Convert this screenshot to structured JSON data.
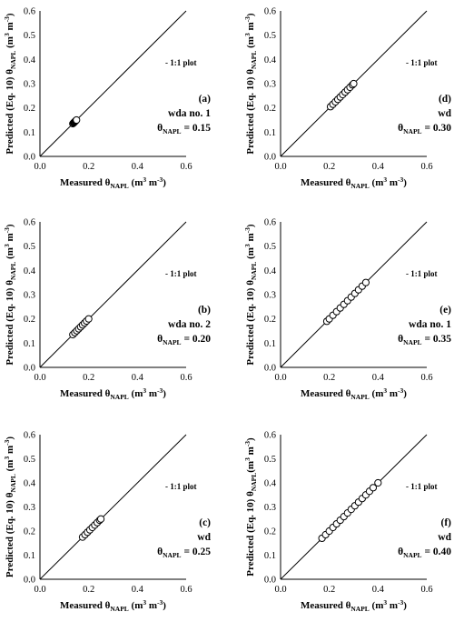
{
  "chart_data": [
    {
      "type": "scatter",
      "panel": "(a)",
      "dataset": "wda no. 1",
      "theta_label": "θ",
      "theta_sub": "NAPL",
      "theta_value": "= 0.15",
      "legend": "- 1:1 plot",
      "xlabel": {
        "main": "Measured θ",
        "sub": "NAPL",
        "unit_a": " (m",
        "sup1": "3",
        "unit_b": " m",
        "sup2": "-3",
        "unit_c": ")"
      },
      "ylabel": {
        "main": "Predicted (Eq. 10) θ",
        "sub": "NAPL",
        "unit_a": " (m",
        "sup1": "3",
        "unit_b": " m",
        "sup2": "-3",
        "unit_c": ")"
      },
      "xlim": [
        0,
        0.6
      ],
      "ylim": [
        0,
        0.6
      ],
      "xticks": [
        "0.0",
        "0.2",
        "0.4",
        "0.6"
      ],
      "yticks": [
        "0.0",
        "0.1",
        "0.2",
        "0.3",
        "0.4",
        "0.5",
        "0.6"
      ],
      "x": [
        0.135,
        0.138,
        0.14,
        0.142,
        0.144,
        0.146,
        0.148,
        0.15
      ],
      "y": [
        0.135,
        0.138,
        0.14,
        0.142,
        0.144,
        0.146,
        0.148,
        0.15
      ]
    },
    {
      "type": "scatter",
      "panel": "(d)",
      "dataset": "wd",
      "theta_label": "θ",
      "theta_sub": "NAPL",
      "theta_value": "= 0.30",
      "legend": "- 1:1 plot",
      "xlabel": {
        "main": "Measured θ",
        "sub": "NAPL",
        "unit_a": " (m",
        "sup1": "3",
        "unit_b": " m",
        "sup2": "-3",
        "unit_c": ")"
      },
      "ylabel": {
        "main": "Predicted (Eq. 10) θ",
        "sub": "NAPL",
        "unit_a": " (m",
        "sup1": "3",
        "unit_b": " m",
        "sup2": "-3",
        "unit_c": ")"
      },
      "xlim": [
        0,
        0.6
      ],
      "ylim": [
        0,
        0.6
      ],
      "xticks": [
        "0.0",
        "0.2",
        "0.4",
        "0.6"
      ],
      "yticks": [
        "0.0",
        "0.1",
        "0.2",
        "0.3",
        "0.4",
        "0.5",
        "0.6"
      ],
      "x": [
        0.205,
        0.215,
        0.225,
        0.235,
        0.245,
        0.255,
        0.265,
        0.275,
        0.285,
        0.295,
        0.3
      ],
      "y": [
        0.205,
        0.215,
        0.225,
        0.235,
        0.245,
        0.255,
        0.265,
        0.275,
        0.285,
        0.295,
        0.3
      ]
    },
    {
      "type": "scatter",
      "panel": "(b)",
      "dataset": "wda no. 2",
      "theta_label": "θ",
      "theta_sub": "NAPL",
      "theta_value": "= 0.20",
      "legend": "- 1:1 plot",
      "xlabel": {
        "main": "Measured θ",
        "sub": "NAPL",
        "unit_a": " (m",
        "sup1": "3",
        "unit_b": " m",
        "sup2": "-3",
        "unit_c": ")"
      },
      "ylabel": {
        "main": "Predicted (Eq. 10) θ",
        "sub": "NAPL",
        "unit_a": " (m",
        "sup1": "3",
        "unit_b": " m",
        "sup2": "-3",
        "unit_c": ")"
      },
      "xlim": [
        0,
        0.6
      ],
      "ylim": [
        0,
        0.6
      ],
      "xticks": [
        "0.0",
        "0.2",
        "0.4",
        "0.6"
      ],
      "yticks": [
        "0.0",
        "0.1",
        "0.2",
        "0.3",
        "0.4",
        "0.5",
        "0.6"
      ],
      "x": [
        0.135,
        0.143,
        0.151,
        0.159,
        0.167,
        0.175,
        0.183,
        0.191,
        0.2
      ],
      "y": [
        0.135,
        0.143,
        0.151,
        0.159,
        0.167,
        0.175,
        0.183,
        0.191,
        0.2
      ]
    },
    {
      "type": "scatter",
      "panel": "(e)",
      "dataset": "wda no. 1",
      "theta_label": "θ",
      "theta_sub": "NAPL",
      "theta_value": "= 0.35",
      "legend": "- 1:1 plot",
      "xlabel": {
        "main": "Measured θ",
        "sub": "NAPL",
        "unit_a": " (m",
        "sup1": "3",
        "unit_b": " m",
        "sup2": "-3",
        "unit_c": ")"
      },
      "ylabel": {
        "main": "Predicted (Eq. 10) θ",
        "sub": "NAPL",
        "unit_a": " (m",
        "sup1": "3",
        "unit_b": "  m",
        "sup2": "-3",
        "unit_c": ")"
      },
      "xlim": [
        0,
        0.6
      ],
      "ylim": [
        0,
        0.6
      ],
      "xticks": [
        "0.0",
        "0.2",
        "0.4",
        "0.6"
      ],
      "yticks": [
        "0.0",
        "0.1",
        "0.2",
        "0.3",
        "0.4",
        "0.5",
        "0.6"
      ],
      "x": [
        0.19,
        0.2,
        0.215,
        0.23,
        0.245,
        0.26,
        0.275,
        0.29,
        0.305,
        0.32,
        0.335,
        0.35
      ],
      "y": [
        0.19,
        0.2,
        0.215,
        0.23,
        0.245,
        0.26,
        0.275,
        0.29,
        0.305,
        0.32,
        0.335,
        0.35
      ]
    },
    {
      "type": "scatter",
      "panel": "(c)",
      "dataset": "wd",
      "theta_label": "θ",
      "theta_sub": "NAPL",
      "theta_value": "= 0.25",
      "legend": "- 1:1 plot",
      "xlabel": {
        "main": "Measured θ",
        "sub": "NAPL",
        "unit_a": " (m",
        "sup1": "3",
        "unit_b": " m",
        "sup2": "-3",
        "unit_c": ")"
      },
      "ylabel": {
        "main": "Predicted (Eq. 10) θ",
        "sub": "NAPL",
        "unit_a": " (m",
        "sup1": "3",
        "unit_b": " m",
        "sup2": "-3",
        "unit_c": ")"
      },
      "xlim": [
        0,
        0.6
      ],
      "ylim": [
        0,
        0.6
      ],
      "xticks": [
        "0.0",
        "0.2",
        "0.4",
        "0.6"
      ],
      "yticks": [
        "0.0",
        "0.1",
        "0.2",
        "0.3",
        "0.4",
        "0.5",
        "0.6"
      ],
      "x": [
        0.175,
        0.185,
        0.195,
        0.205,
        0.215,
        0.225,
        0.235,
        0.245,
        0.25
      ],
      "y": [
        0.175,
        0.185,
        0.195,
        0.205,
        0.215,
        0.225,
        0.235,
        0.245,
        0.25
      ]
    },
    {
      "type": "scatter",
      "panel": "(f)",
      "dataset": "wd",
      "theta_label": "θ",
      "theta_sub": "NAPL",
      "theta_value": "= 0.40",
      "legend": "- 1:1 plot",
      "xlabel": {
        "main": "Measured θ",
        "sub": "NAPL",
        "unit_a": " (m",
        "sup1": "3",
        "unit_b": " m",
        "sup2": "-3",
        "unit_c": ")"
      },
      "ylabel": {
        "main": "Predicted (Eq. 10) θ",
        "sub": "NAPL",
        "unit_a": "(m",
        "sup1": "3",
        "unit_b": " m",
        "sup2": "-3",
        "unit_c": ")"
      },
      "xlim": [
        0,
        0.6
      ],
      "ylim": [
        0,
        0.6
      ],
      "xticks": [
        "0.0",
        "0.2",
        "0.4",
        "0.6"
      ],
      "yticks": [
        "0.0",
        "0.1",
        "0.2",
        "0.3",
        "0.4",
        "0.5",
        "0.6"
      ],
      "x": [
        0.17,
        0.185,
        0.2,
        0.215,
        0.23,
        0.245,
        0.26,
        0.275,
        0.29,
        0.305,
        0.32,
        0.335,
        0.35,
        0.365,
        0.38,
        0.4
      ],
      "y": [
        0.17,
        0.185,
        0.2,
        0.215,
        0.23,
        0.245,
        0.26,
        0.275,
        0.29,
        0.305,
        0.32,
        0.335,
        0.35,
        0.365,
        0.38,
        0.4
      ]
    }
  ]
}
